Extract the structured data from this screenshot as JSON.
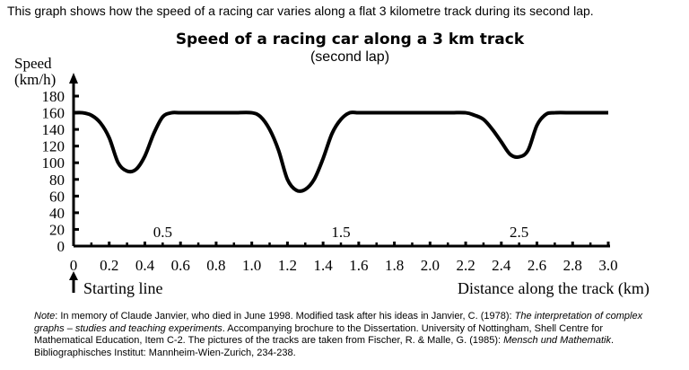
{
  "intro": "This graph shows how the speed of a racing car varies along a flat 3 kilometre track during its second lap.",
  "note": {
    "label": "Note",
    "p1": ": In memory of Claude Janvier, who died in June 1998. Modified task after his ideas in Janvier, C. (1978): ",
    "i1": "The interpretation of complex graphs – studies and teaching experiments",
    "p2": ". Accompanying brochure to the Dissertation. University of Nottingham, Shell Centre for Mathematical Education, Item C-2. The pictures of the tracks are taken from Fischer, R. & Malle, G. (1985): ",
    "i2": "Mensch und Mathematik",
    "p3": ". Bibliographisches Institut: Mannheim-Wien-Zurich, 234-238."
  },
  "chart_data": {
    "type": "line",
    "title": "Speed of a racing car along a 3 km track",
    "subtitle": "(second lap)",
    "ylabel_line1": "Speed",
    "ylabel_line2": "(km/h)",
    "xlabel": "Distance along the track (km)",
    "start_annotation": "Starting line",
    "xlim": [
      0,
      3.0
    ],
    "ylim": [
      0,
      180
    ],
    "x_ticks": [
      "0",
      "0.2",
      "0.4",
      "0.6",
      "0.8",
      "1.0",
      "1.2",
      "1.4",
      "1.6",
      "1.8",
      "2.0",
      "2.2",
      "2.4",
      "2.6",
      "2.8",
      "3.0"
    ],
    "y_ticks": [
      "0",
      "20",
      "40",
      "60",
      "80",
      "100",
      "120",
      "140",
      "160",
      "180"
    ],
    "axis_annotations": [
      "0.5",
      "1.5",
      "2.5"
    ],
    "grid": false,
    "line_color": "#000000",
    "x": [
      0,
      0.05,
      0.1,
      0.15,
      0.2,
      0.25,
      0.3,
      0.35,
      0.4,
      0.45,
      0.5,
      0.55,
      0.6,
      0.7,
      0.8,
      0.9,
      1.0,
      1.05,
      1.1,
      1.15,
      1.2,
      1.25,
      1.3,
      1.35,
      1.4,
      1.45,
      1.5,
      1.55,
      1.6,
      1.7,
      1.8,
      1.9,
      2.0,
      2.1,
      2.2,
      2.25,
      2.3,
      2.35,
      2.4,
      2.45,
      2.5,
      2.55,
      2.6,
      2.65,
      2.7,
      2.8,
      2.9,
      3.0
    ],
    "y": [
      160,
      160,
      157,
      148,
      130,
      100,
      90,
      92,
      108,
      135,
      155,
      160,
      160,
      160,
      160,
      160,
      160,
      155,
      140,
      115,
      80,
      67,
      68,
      80,
      105,
      135,
      152,
      160,
      160,
      160,
      160,
      160,
      160,
      160,
      160,
      157,
      152,
      140,
      125,
      110,
      107,
      115,
      145,
      158,
      160,
      160,
      160,
      160
    ]
  }
}
